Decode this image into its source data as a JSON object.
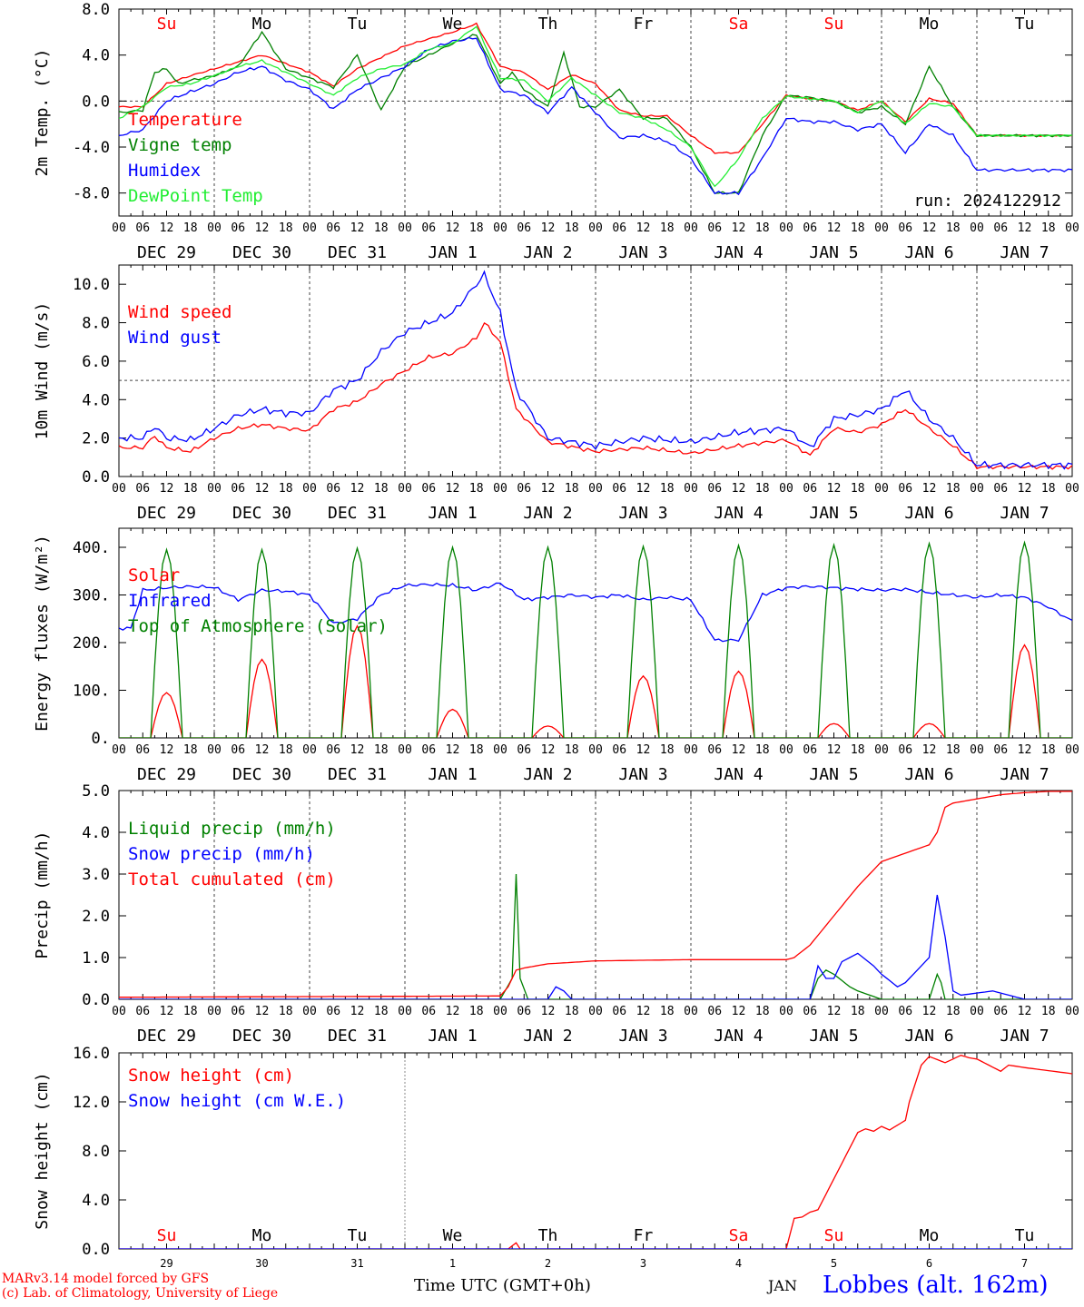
{
  "colors": {
    "red": "#ff0000",
    "darkgreen": "#008000",
    "blue": "#0000ff",
    "lightgreen": "#22ee33",
    "grid": "#666666"
  },
  "day_names": [
    "Su",
    "Mo",
    "Tu",
    "We",
    "Th",
    "Fr",
    "Sa",
    "Su",
    "Mo",
    "Tu"
  ],
  "day_name_colors": [
    "red",
    "black",
    "black",
    "black",
    "black",
    "black",
    "red",
    "red",
    "black",
    "black"
  ],
  "day_dates": [
    "DEC 29",
    "DEC 30",
    "DEC 31",
    "JAN  1",
    "JAN  2",
    "JAN  3",
    "JAN  4",
    "JAN  5",
    "JAN  6",
    "JAN  7"
  ],
  "bottom_day_numbers": [
    "29",
    "30",
    "31",
    "1",
    "2",
    "3",
    "4",
    "5",
    "6",
    "7"
  ],
  "hour_ticks": [
    "00",
    "06",
    "12",
    "18"
  ],
  "footer": {
    "model": "MARv3.14 model forced by GFS",
    "credit": "(c) Lab. of Climatology, University of Liege",
    "xlabel": "Time UTC (GMT+0h)",
    "month": "JAN",
    "station": "Lobbes (alt. 162m)"
  },
  "chart_data": [
    {
      "type": "line",
      "ylabel": "2m Temp. (°C)",
      "ylim": [
        -10,
        8
      ],
      "yticks": [
        8.0,
        4.0,
        0.0,
        -4.0,
        -8.0
      ],
      "ytick_labels": [
        "8.0",
        "4.0",
        "0.0",
        "-4.0",
        "-8.0"
      ],
      "ref_line": 0,
      "annotation": "run: 2024122912",
      "x_unit": "hours since DEC 29 00 UTC",
      "series": [
        {
          "name": "Temperature",
          "color": "red",
          "x": [
            0,
            6,
            12,
            18,
            24,
            36,
            48,
            54,
            60,
            72,
            84,
            90,
            96,
            102,
            108,
            114,
            120,
            126,
            132,
            138,
            144,
            150,
            156,
            162,
            168,
            174,
            180,
            186,
            192,
            198,
            204,
            210,
            216,
            222,
            228,
            234,
            240
          ],
          "y": [
            -0.5,
            -0.5,
            1.5,
            2.2,
            2.8,
            4.0,
            2.5,
            1.3,
            2.8,
            4.8,
            6.0,
            6.7,
            3.0,
            2.5,
            1.0,
            2.3,
            1.5,
            -0.8,
            -1.3,
            -1.3,
            -3.0,
            -4.5,
            -4.5,
            -2.0,
            0.5,
            0.2,
            0.0,
            -0.8,
            0.0,
            -1.8,
            0.2,
            -0.2,
            -3.0,
            -3,
            -3,
            -3,
            -3
          ]
        },
        {
          "name": "Vigne temp",
          "color": "darkgreen",
          "x": [
            0,
            6,
            9,
            12,
            15,
            18,
            24,
            30,
            36,
            42,
            48,
            54,
            60,
            66,
            72,
            78,
            84,
            90,
            96,
            99,
            102,
            108,
            112,
            116,
            120,
            126,
            132,
            138,
            144,
            150,
            156,
            162,
            168,
            174,
            180,
            186,
            192,
            198,
            204,
            210,
            216,
            222,
            228,
            234,
            240
          ],
          "y": [
            -1,
            -0.8,
            2.5,
            2.8,
            1.5,
            1.8,
            2.2,
            3.0,
            6.0,
            2.8,
            2.0,
            1.2,
            4.0,
            -0.8,
            3.0,
            4.0,
            5.0,
            5.8,
            1.5,
            2.5,
            1.0,
            -0.5,
            4.2,
            -0.5,
            -0.5,
            1.0,
            -1.5,
            -1.5,
            -4.0,
            -8.0,
            -8.0,
            -3.0,
            0.5,
            0.3,
            0.0,
            -1.0,
            -0.5,
            -2.0,
            3.0,
            -0.5,
            -3.0,
            -3,
            -3,
            -3,
            -3
          ]
        },
        {
          "name": "Humidex",
          "color": "blue",
          "x": [
            0,
            6,
            12,
            18,
            24,
            30,
            36,
            42,
            48,
            54,
            60,
            66,
            72,
            78,
            84,
            90,
            96,
            102,
            108,
            114,
            120,
            126,
            132,
            138,
            144,
            150,
            156,
            162,
            168,
            174,
            180,
            186,
            192,
            198,
            204,
            210,
            216,
            222,
            228,
            234,
            240
          ],
          "y": [
            -3.0,
            -2.5,
            0,
            0.8,
            1.5,
            2.5,
            3.0,
            1.8,
            1.0,
            -0.7,
            1.0,
            2.0,
            3.0,
            4.5,
            5.2,
            5.5,
            1.0,
            0.5,
            -1.0,
            1.2,
            -1.0,
            -3.2,
            -3.0,
            -3.5,
            -5.0,
            -8.0,
            -8.0,
            -5.0,
            -1.5,
            -1.8,
            -1.8,
            -2.5,
            -2.0,
            -4.5,
            -2.0,
            -3.0,
            -6.0,
            -6,
            -6,
            -6,
            -6
          ]
        },
        {
          "name": "DewPoint Temp",
          "color": "lightgreen",
          "x": [
            0,
            6,
            12,
            18,
            24,
            30,
            36,
            42,
            48,
            54,
            60,
            66,
            72,
            78,
            84,
            90,
            96,
            102,
            108,
            114,
            120,
            126,
            132,
            138,
            144,
            150,
            156,
            162,
            168,
            174,
            180,
            186,
            192,
            198,
            204,
            210,
            216,
            222,
            228,
            234,
            240
          ],
          "y": [
            -1.5,
            -0.5,
            1.2,
            1.5,
            2.2,
            3.0,
            3.5,
            2.5,
            1.5,
            0.5,
            2.0,
            2.8,
            3.2,
            4.5,
            5.0,
            6.5,
            2.0,
            1.8,
            0.0,
            2.0,
            0.5,
            -1.0,
            -1.5,
            -2.5,
            -4.0,
            -7.5,
            -5.0,
            -1.5,
            0.4,
            0.2,
            0.0,
            -1.0,
            0.0,
            -2.0,
            -0.2,
            -0.5,
            -3.0,
            -3,
            -3,
            -3,
            -3
          ]
        }
      ]
    },
    {
      "type": "line",
      "ylabel": "10m Wind (m/s)",
      "ylim": [
        0,
        11
      ],
      "yticks": [
        0.0,
        2.0,
        4.0,
        6.0,
        8.0,
        10.0
      ],
      "ytick_labels": [
        "0.0",
        "2.0",
        "4.0",
        "6.0",
        "8.0",
        "10.0"
      ],
      "ref_line": 5,
      "x_unit": "hours since DEC 29 00 UTC",
      "series": [
        {
          "name": "Wind speed",
          "color": "red",
          "x": [
            0,
            6,
            9,
            12,
            18,
            24,
            30,
            36,
            42,
            48,
            54,
            60,
            66,
            72,
            78,
            84,
            90,
            92,
            96,
            100,
            108,
            120,
            132,
            144,
            156,
            168,
            174,
            180,
            186,
            192,
            198,
            204,
            210,
            216,
            222,
            228,
            234,
            240
          ],
          "y": [
            1.5,
            1.5,
            2.1,
            1.5,
            1.3,
            2.0,
            2.5,
            2.7,
            2.5,
            2.4,
            3.5,
            3.9,
            4.8,
            5.5,
            6.2,
            6.4,
            7.2,
            8.0,
            7.0,
            3.5,
            1.8,
            1.3,
            1.5,
            1.2,
            1.6,
            1.9,
            1.1,
            2.5,
            2.3,
            2.7,
            3.5,
            2.5,
            1.6,
            0.5,
            0.5,
            0.5,
            0.5,
            0.5
          ]
        },
        {
          "name": "Wind gust",
          "color": "blue",
          "x": [
            0,
            6,
            9,
            12,
            18,
            24,
            30,
            36,
            42,
            48,
            54,
            60,
            66,
            72,
            78,
            84,
            90,
            92,
            96,
            100,
            108,
            120,
            132,
            144,
            156,
            168,
            174,
            180,
            186,
            192,
            198,
            204,
            210,
            216,
            222,
            228,
            234,
            240
          ],
          "y": [
            2.0,
            2.0,
            2.6,
            2.0,
            1.9,
            2.5,
            3.2,
            3.5,
            3.3,
            3.3,
            4.5,
            5.0,
            6.5,
            7.5,
            8.0,
            8.5,
            10.0,
            10.5,
            8.5,
            4.5,
            2.0,
            1.6,
            2.0,
            1.8,
            2.3,
            2.5,
            1.5,
            3.0,
            3.2,
            3.5,
            4.5,
            3.0,
            2.0,
            0.6,
            0.6,
            0.6,
            0.6,
            0.6
          ]
        }
      ]
    },
    {
      "type": "line",
      "ylabel": "Energy fluxes (W/m²)",
      "ylim": [
        0,
        440
      ],
      "yticks": [
        0,
        100,
        200,
        300,
        400
      ],
      "ytick_labels": [
        "0.",
        "100.",
        "200.",
        "300.",
        "400."
      ],
      "x_unit": "hours since DEC 29 00 UTC",
      "series": [
        {
          "name": "Solar",
          "color": "red",
          "daily_peak": [
            95,
            165,
            235,
            60,
            25,
            130,
            140,
            30,
            30,
            195
          ]
        },
        {
          "name": "Infrared",
          "color": "blue",
          "x": [
            0,
            3,
            6,
            12,
            18,
            24,
            30,
            36,
            42,
            48,
            54,
            60,
            66,
            72,
            78,
            84,
            90,
            96,
            102,
            108,
            114,
            120,
            126,
            132,
            138,
            144,
            150,
            156,
            162,
            168,
            174,
            180,
            186,
            192,
            198,
            204,
            210,
            216,
            222,
            228,
            234,
            240
          ],
          "y": [
            230,
            230,
            310,
            315,
            318,
            316,
            290,
            310,
            308,
            300,
            240,
            250,
            300,
            320,
            322,
            320,
            310,
            325,
            290,
            295,
            300,
            295,
            300,
            290,
            295,
            290,
            205,
            205,
            300,
            315,
            318,
            315,
            312,
            310,
            312,
            305,
            300,
            295,
            300,
            295,
            275,
            245
          ]
        },
        {
          "name": "Top of Atmosphere (Solar)",
          "color": "darkgreen",
          "daily_peak": [
            395,
            395,
            398,
            400,
            400,
            402,
            404,
            405,
            408,
            410
          ]
        }
      ]
    },
    {
      "type": "line",
      "ylabel": "Precip (mm/h)",
      "ylim": [
        0,
        5
      ],
      "yticks": [
        0.0,
        1.0,
        2.0,
        3.0,
        4.0,
        5.0
      ],
      "ytick_labels": [
        "0.0",
        "1.0",
        "2.0",
        "3.0",
        "4.0",
        "5.0"
      ],
      "x_unit": "hours since DEC 29 00 UTC",
      "series": [
        {
          "name": "Liquid precip (mm/h)",
          "color": "darkgreen",
          "x": [
            0,
            96,
            99,
            100,
            101,
            103,
            105,
            108,
            174,
            176,
            178,
            180,
            184,
            186,
            192,
            204,
            206,
            207,
            208,
            210,
            216
          ],
          "y": [
            0,
            0,
            0.5,
            3.0,
            0.5,
            0,
            0,
            0,
            0,
            0.5,
            0.7,
            0.6,
            0.3,
            0.2,
            0,
            0,
            0.6,
            0.4,
            0,
            0,
            0
          ]
        },
        {
          "name": "Snow precip (mm/h)",
          "color": "blue",
          "x": [
            0,
            108,
            110,
            112,
            114,
            116,
            174,
            176,
            178,
            180,
            182,
            186,
            190,
            192,
            196,
            198,
            204,
            206,
            208,
            210,
            212,
            220,
            224,
            228,
            240
          ],
          "y": [
            0,
            0,
            0.3,
            0.2,
            0,
            0,
            0,
            0.8,
            0.5,
            0.5,
            0.9,
            1.1,
            0.8,
            0.6,
            0.3,
            0.4,
            1.0,
            2.5,
            1.5,
            0.2,
            0.1,
            0.2,
            0.1,
            0,
            0
          ]
        },
        {
          "name": "Total cumulated (cm)",
          "color": "red",
          "x": [
            0,
            96,
            98,
            100,
            102,
            108,
            120,
            144,
            168,
            170,
            174,
            180,
            186,
            192,
            198,
            204,
            206,
            208,
            210,
            216,
            222,
            228,
            234,
            240
          ],
          "y": [
            0.05,
            0.08,
            0.3,
            0.7,
            0.75,
            0.85,
            0.92,
            0.95,
            0.95,
            1.0,
            1.3,
            2.0,
            2.7,
            3.3,
            3.5,
            3.7,
            4.0,
            4.6,
            4.7,
            4.8,
            4.9,
            4.95,
            4.98,
            4.98
          ]
        }
      ]
    },
    {
      "type": "line",
      "ylabel": "Snow height (cm)",
      "ylim": [
        0,
        16
      ],
      "yticks": [
        0.0,
        4.0,
        8.0,
        12.0,
        16.0
      ],
      "ytick_labels": [
        "0.0",
        "4.0",
        "8.0",
        "12.0",
        "16.0"
      ],
      "x_unit": "hours since DEC 29 00 UTC",
      "series": [
        {
          "name": "Snow height (cm)",
          "color": "red",
          "x": [
            0,
            96,
            98,
            100,
            101,
            104,
            108,
            168,
            170,
            172,
            174,
            176,
            186,
            188,
            190,
            192,
            194,
            198,
            199,
            202,
            204,
            208,
            212,
            214,
            216,
            222,
            224,
            228,
            240
          ],
          "y": [
            0,
            0,
            0,
            0.5,
            0,
            0,
            0,
            0,
            2.5,
            2.6,
            3.0,
            3.2,
            9.5,
            9.8,
            9.6,
            10.0,
            9.7,
            10.5,
            12,
            15.0,
            15.7,
            15.2,
            15.8,
            15.6,
            15.5,
            14.5,
            15.0,
            14.8,
            14.3
          ]
        },
        {
          "name": "Snow height (cm W.E.)",
          "color": "blue",
          "x": [
            0,
            240
          ],
          "y": [
            0,
            0
          ]
        }
      ]
    }
  ]
}
